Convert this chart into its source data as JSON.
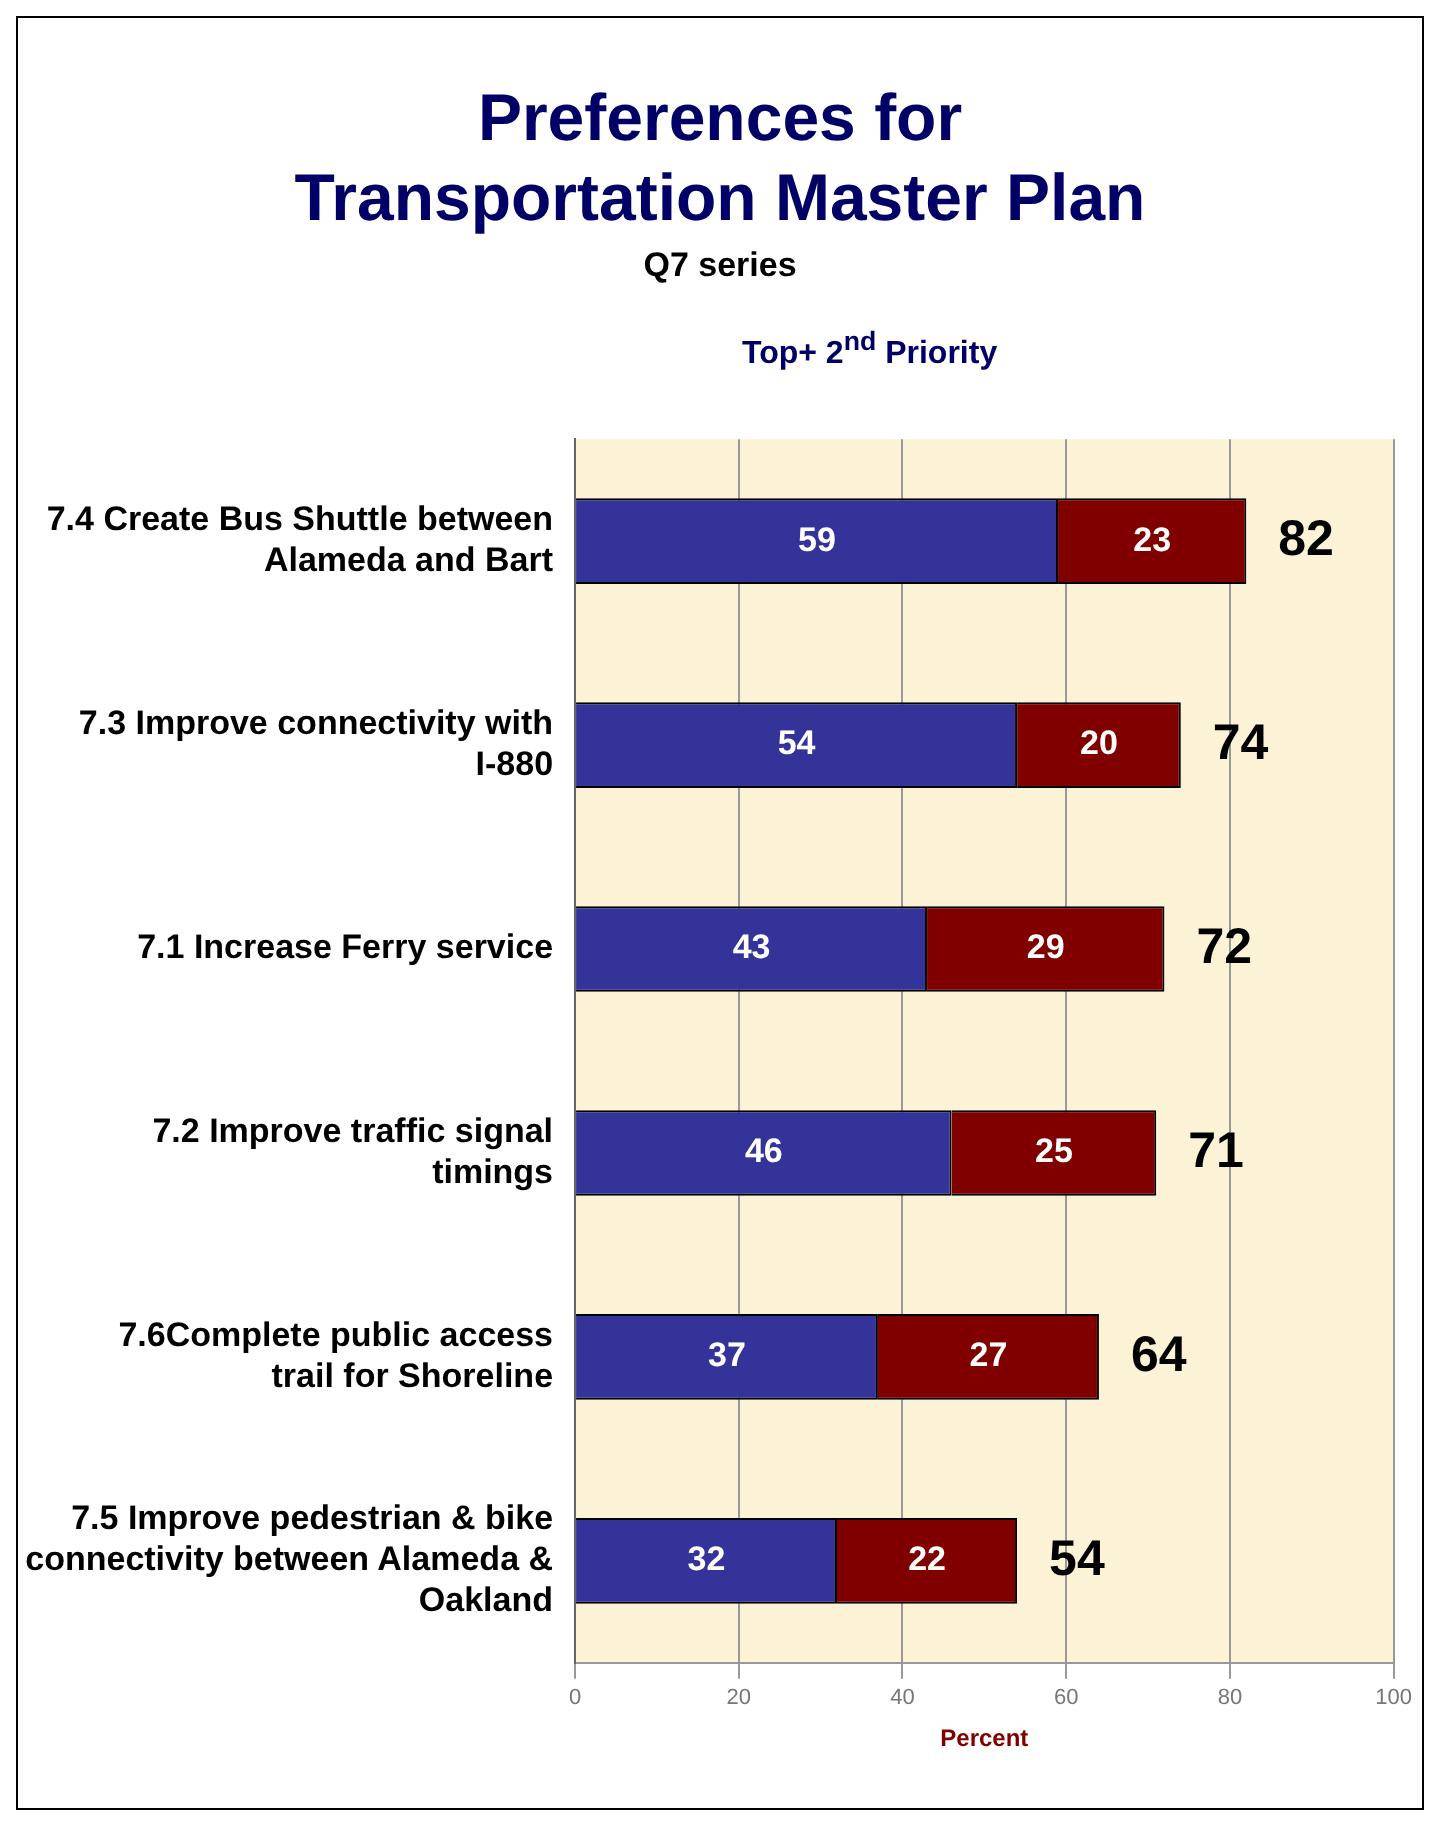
{
  "chart_data": {
    "type": "bar",
    "orientation": "horizontal",
    "stacked": true,
    "title": "Preferences for Transportation Master Plan",
    "subtitle": "Q7 series",
    "xlabel": "Percent",
    "annotations": [
      "Top+ 2$^{nd}$ Priority"
    ],
    "categories": [
      "7.4 Create Bus Shuttle between Alameda and Bart",
      "7.3 Improve connectivity with I-880",
      "7.1 Increase Ferry service",
      "7.2 Improve traffic signal timings",
      "7.6Complete public access trail for Shoreline",
      "7.5 Improve pedestrian & bike connectivity between Alameda & Oakland"
    ],
    "series": [
      {
        "color": "#333399",
        "values": [
          59,
          54,
          43,
          46,
          37,
          32
        ]
      },
      {
        "color": "#800000",
        "values": [
          23,
          20,
          29,
          25,
          27,
          22
        ]
      }
    ],
    "totals": [
      "82",
      "74",
      "72",
      "71",
      "64",
      "54"
    ],
    "data_labels": true,
    "xlim": [
      0,
      100
    ],
    "xticks": [
      0,
      20,
      40,
      60,
      80,
      100
    ],
    "grid": "x",
    "legend": false
  }
}
